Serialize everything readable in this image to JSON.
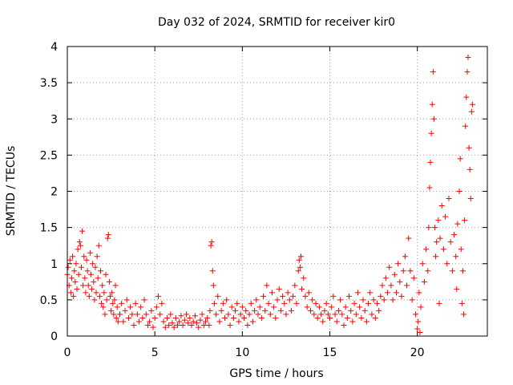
{
  "chart_data": {
    "type": "scatter",
    "title": "Day 032 of 2024, SRMTID for receiver kir0",
    "xlabel": "GPS time / hours",
    "ylabel": "SRMTID / TECUs",
    "xlim": [
      0,
      24
    ],
    "ylim": [
      0,
      4
    ],
    "xticks": [
      0,
      5,
      10,
      15,
      20
    ],
    "xtick_labels": [
      "0",
      "5",
      "10",
      "15",
      "20"
    ],
    "yticks": [
      0,
      0.5,
      1,
      1.5,
      2,
      2.5,
      3,
      3.5,
      4
    ],
    "ytick_labels": [
      "0",
      "0.5",
      "1",
      "1.5",
      "2",
      "2.5",
      "3",
      "3.5",
      "4"
    ],
    "grid": true,
    "marker": "+",
    "color": "#ff0000",
    "series": [
      {
        "name": "kir0",
        "points": [
          [
            0.0,
            0.85
          ],
          [
            0.05,
            0.95
          ],
          [
            0.1,
            0.7
          ],
          [
            0.15,
            1.05
          ],
          [
            0.2,
            0.6
          ],
          [
            0.25,
            0.8
          ],
          [
            0.3,
            1.1
          ],
          [
            0.35,
            0.55
          ],
          [
            0.4,
            0.9
          ],
          [
            0.45,
            0.75
          ],
          [
            0.5,
            1.0
          ],
          [
            0.55,
            0.65
          ],
          [
            0.6,
            1.2
          ],
          [
            0.65,
            0.85
          ],
          [
            0.7,
            1.3
          ],
          [
            0.75,
            1.25
          ],
          [
            0.8,
            0.95
          ],
          [
            0.85,
            1.45
          ],
          [
            0.9,
            0.7
          ],
          [
            0.95,
            1.1
          ],
          [
            1.0,
            0.8
          ],
          [
            1.05,
            0.6
          ],
          [
            1.1,
            1.05
          ],
          [
            1.15,
            0.9
          ],
          [
            1.2,
            0.7
          ],
          [
            1.25,
            0.55
          ],
          [
            1.3,
            1.15
          ],
          [
            1.35,
            0.85
          ],
          [
            1.4,
            0.65
          ],
          [
            1.45,
            1.0
          ],
          [
            1.5,
            0.75
          ],
          [
            1.55,
            0.5
          ],
          [
            1.6,
            0.95
          ],
          [
            1.65,
            0.6
          ],
          [
            1.7,
            1.1
          ],
          [
            1.75,
            0.8
          ],
          [
            1.8,
            1.25
          ],
          [
            1.85,
            0.55
          ],
          [
            1.9,
            0.9
          ],
          [
            1.95,
            0.45
          ],
          [
            2.0,
            0.7
          ],
          [
            2.05,
            0.4
          ],
          [
            2.1,
            0.6
          ],
          [
            2.15,
            0.3
          ],
          [
            2.2,
            0.85
          ],
          [
            2.25,
            0.5
          ],
          [
            2.3,
            1.35
          ],
          [
            2.35,
            1.4
          ],
          [
            2.4,
            0.75
          ],
          [
            2.45,
            0.55
          ],
          [
            2.5,
            0.35
          ],
          [
            2.55,
            0.6
          ],
          [
            2.6,
            0.45
          ],
          [
            2.65,
            0.3
          ],
          [
            2.7,
            0.5
          ],
          [
            2.75,
            0.7
          ],
          [
            2.8,
            0.25
          ],
          [
            2.85,
            0.4
          ],
          [
            2.9,
            0.2
          ],
          [
            3.0,
            0.3
          ],
          [
            3.1,
            0.45
          ],
          [
            3.2,
            0.2
          ],
          [
            3.3,
            0.35
          ],
          [
            3.4,
            0.5
          ],
          [
            3.5,
            0.25
          ],
          [
            3.6,
            0.4
          ],
          [
            3.7,
            0.3
          ],
          [
            3.8,
            0.15
          ],
          [
            3.9,
            0.45
          ],
          [
            4.0,
            0.3
          ],
          [
            4.1,
            0.2
          ],
          [
            4.2,
            0.4
          ],
          [
            4.3,
            0.25
          ],
          [
            4.4,
            0.5
          ],
          [
            4.5,
            0.3
          ],
          [
            4.6,
            0.15
          ],
          [
            4.7,
            0.2
          ],
          [
            4.8,
            0.35
          ],
          [
            4.9,
            0.12
          ],
          [
            5.0,
            0.25
          ],
          [
            5.1,
            0.4
          ],
          [
            5.2,
            0.55
          ],
          [
            5.3,
            0.3
          ],
          [
            5.4,
            0.45
          ],
          [
            5.5,
            0.2
          ],
          [
            5.6,
            0.12
          ],
          [
            5.7,
            0.25
          ],
          [
            5.8,
            0.15
          ],
          [
            5.9,
            0.3
          ],
          [
            6.0,
            0.18
          ],
          [
            6.1,
            0.12
          ],
          [
            6.2,
            0.25
          ],
          [
            6.3,
            0.15
          ],
          [
            6.4,
            0.2
          ],
          [
            6.5,
            0.28
          ],
          [
            6.6,
            0.15
          ],
          [
            6.7,
            0.22
          ],
          [
            6.8,
            0.3
          ],
          [
            6.9,
            0.18
          ],
          [
            7.0,
            0.25
          ],
          [
            7.1,
            0.15
          ],
          [
            7.2,
            0.2
          ],
          [
            7.3,
            0.28
          ],
          [
            7.4,
            0.18
          ],
          [
            7.5,
            0.12
          ],
          [
            7.6,
            0.22
          ],
          [
            7.7,
            0.3
          ],
          [
            7.8,
            0.15
          ],
          [
            7.9,
            0.2
          ],
          [
            8.0,
            0.25
          ],
          [
            8.1,
            0.15
          ],
          [
            8.15,
            0.35
          ],
          [
            8.2,
            1.25
          ],
          [
            8.25,
            1.3
          ],
          [
            8.3,
            0.9
          ],
          [
            8.35,
            0.7
          ],
          [
            8.4,
            0.45
          ],
          [
            8.5,
            0.3
          ],
          [
            8.6,
            0.55
          ],
          [
            8.7,
            0.2
          ],
          [
            8.8,
            0.35
          ],
          [
            8.9,
            0.45
          ],
          [
            9.0,
            0.25
          ],
          [
            9.1,
            0.5
          ],
          [
            9.2,
            0.3
          ],
          [
            9.3,
            0.15
          ],
          [
            9.4,
            0.4
          ],
          [
            9.5,
            0.25
          ],
          [
            9.6,
            0.35
          ],
          [
            9.7,
            0.45
          ],
          [
            9.8,
            0.2
          ],
          [
            9.9,
            0.3
          ],
          [
            10.0,
            0.4
          ],
          [
            10.1,
            0.25
          ],
          [
            10.2,
            0.35
          ],
          [
            10.3,
            0.15
          ],
          [
            10.4,
            0.3
          ],
          [
            10.5,
            0.45
          ],
          [
            10.6,
            0.2
          ],
          [
            10.7,
            0.35
          ],
          [
            10.8,
            0.5
          ],
          [
            10.9,
            0.3
          ],
          [
            11.0,
            0.4
          ],
          [
            11.1,
            0.25
          ],
          [
            11.2,
            0.55
          ],
          [
            11.3,
            0.35
          ],
          [
            11.4,
            0.7
          ],
          [
            11.5,
            0.45
          ],
          [
            11.6,
            0.3
          ],
          [
            11.7,
            0.6
          ],
          [
            11.8,
            0.4
          ],
          [
            11.9,
            0.25
          ],
          [
            12.0,
            0.5
          ],
          [
            12.1,
            0.65
          ],
          [
            12.2,
            0.35
          ],
          [
            12.3,
            0.55
          ],
          [
            12.4,
            0.45
          ],
          [
            12.5,
            0.3
          ],
          [
            12.6,
            0.6
          ],
          [
            12.7,
            0.5
          ],
          [
            12.8,
            0.35
          ],
          [
            12.9,
            0.55
          ],
          [
            13.0,
            0.7
          ],
          [
            13.1,
            0.45
          ],
          [
            13.2,
            0.9
          ],
          [
            13.25,
            1.05
          ],
          [
            13.3,
            0.95
          ],
          [
            13.35,
            1.1
          ],
          [
            13.4,
            0.65
          ],
          [
            13.5,
            0.8
          ],
          [
            13.6,
            0.55
          ],
          [
            13.7,
            0.4
          ],
          [
            13.8,
            0.6
          ],
          [
            13.9,
            0.35
          ],
          [
            14.0,
            0.5
          ],
          [
            14.1,
            0.3
          ],
          [
            14.2,
            0.45
          ],
          [
            14.3,
            0.25
          ],
          [
            14.4,
            0.4
          ],
          [
            14.5,
            0.3
          ],
          [
            14.6,
            0.2
          ],
          [
            14.7,
            0.35
          ],
          [
            14.8,
            0.45
          ],
          [
            14.9,
            0.3
          ],
          [
            15.0,
            0.25
          ],
          [
            15.1,
            0.4
          ],
          [
            15.2,
            0.55
          ],
          [
            15.3,
            0.3
          ],
          [
            15.4,
            0.2
          ],
          [
            15.5,
            0.35
          ],
          [
            15.6,
            0.5
          ],
          [
            15.7,
            0.3
          ],
          [
            15.8,
            0.15
          ],
          [
            15.9,
            0.4
          ],
          [
            16.0,
            0.25
          ],
          [
            16.1,
            0.55
          ],
          [
            16.2,
            0.35
          ],
          [
            16.3,
            0.2
          ],
          [
            16.4,
            0.45
          ],
          [
            16.5,
            0.3
          ],
          [
            16.6,
            0.6
          ],
          [
            16.7,
            0.4
          ],
          [
            16.8,
            0.25
          ],
          [
            16.9,
            0.5
          ],
          [
            17.0,
            0.35
          ],
          [
            17.1,
            0.2
          ],
          [
            17.2,
            0.45
          ],
          [
            17.3,
            0.6
          ],
          [
            17.4,
            0.3
          ],
          [
            17.5,
            0.5
          ],
          [
            17.6,
            0.25
          ],
          [
            17.7,
            0.45
          ],
          [
            17.8,
            0.35
          ],
          [
            17.9,
            0.55
          ],
          [
            18.0,
            0.7
          ],
          [
            18.1,
            0.5
          ],
          [
            18.2,
            0.8
          ],
          [
            18.3,
            0.6
          ],
          [
            18.4,
            0.95
          ],
          [
            18.5,
            0.7
          ],
          [
            18.6,
            0.5
          ],
          [
            18.7,
            0.85
          ],
          [
            18.8,
            0.6
          ],
          [
            18.9,
            1.0
          ],
          [
            19.0,
            0.75
          ],
          [
            19.1,
            0.55
          ],
          [
            19.2,
            0.9
          ],
          [
            19.3,
            1.1
          ],
          [
            19.4,
            0.7
          ],
          [
            19.5,
            1.35
          ],
          [
            19.6,
            0.9
          ],
          [
            19.7,
            0.5
          ],
          [
            19.8,
            0.8
          ],
          [
            19.9,
            0.3
          ],
          [
            20.0,
            0.1
          ],
          [
            20.05,
            0.2
          ],
          [
            20.1,
            0.6
          ],
          [
            20.15,
            0.05
          ],
          [
            20.2,
            0.4
          ],
          [
            20.3,
            1.0
          ],
          [
            20.4,
            0.75
          ],
          [
            20.5,
            1.2
          ],
          [
            20.6,
            0.9
          ],
          [
            20.65,
            1.5
          ],
          [
            20.7,
            2.05
          ],
          [
            20.75,
            2.4
          ],
          [
            20.8,
            2.8
          ],
          [
            20.85,
            3.2
          ],
          [
            20.9,
            3.65
          ],
          [
            20.95,
            3.0
          ],
          [
            21.0,
            1.5
          ],
          [
            21.05,
            1.1
          ],
          [
            21.1,
            1.3
          ],
          [
            21.2,
            1.6
          ],
          [
            21.25,
            0.45
          ],
          [
            21.3,
            1.35
          ],
          [
            21.4,
            1.8
          ],
          [
            21.5,
            1.2
          ],
          [
            21.6,
            1.65
          ],
          [
            21.7,
            1.0
          ],
          [
            21.8,
            1.9
          ],
          [
            21.9,
            1.3
          ],
          [
            22.0,
            0.9
          ],
          [
            22.1,
            1.4
          ],
          [
            22.2,
            1.1
          ],
          [
            22.25,
            0.65
          ],
          [
            22.3,
            1.55
          ],
          [
            22.4,
            2.0
          ],
          [
            22.45,
            2.45
          ],
          [
            22.5,
            1.2
          ],
          [
            22.55,
            0.45
          ],
          [
            22.6,
            0.9
          ],
          [
            22.65,
            0.3
          ],
          [
            22.7,
            1.6
          ],
          [
            22.75,
            2.9
          ],
          [
            22.8,
            3.3
          ],
          [
            22.85,
            3.65
          ],
          [
            22.9,
            3.85
          ],
          [
            22.95,
            2.6
          ],
          [
            23.0,
            2.3
          ],
          [
            23.05,
            1.9
          ],
          [
            23.1,
            3.1
          ],
          [
            23.15,
            3.2
          ]
        ]
      }
    ]
  }
}
